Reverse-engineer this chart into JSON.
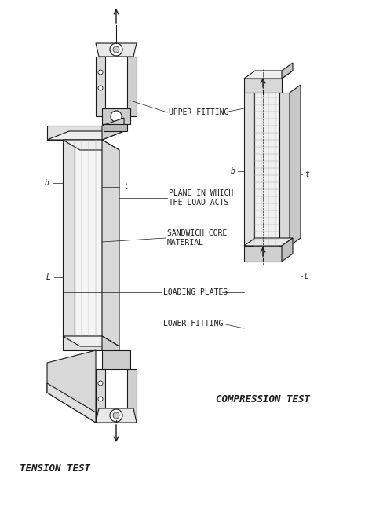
{
  "background_color": "#ffffff",
  "line_color": "#1a1a1a",
  "text_color": "#1a1a1a",
  "fig_width": 4.74,
  "fig_height": 6.43,
  "dpi": 100,
  "labels": {
    "upper_fitting": "UPPER FITTING",
    "plane_load": "PLANE IN WHICH\nTHE LOAD ACTS",
    "sandwich_core": "SANDWICH CORE\nMATERIAL",
    "loading_plates": "LOADING PLATES",
    "lower_fitting": "LOWER FITTING",
    "compression_test": "COMPRESSION TEST",
    "tension_test": "TENSION TEST",
    "b_left": "b",
    "t_left": "t",
    "L_left": "L",
    "b_right": "b",
    "t_right": "t",
    "L_right": "L"
  },
  "font_size_labels": 7,
  "font_size_titles": 9
}
